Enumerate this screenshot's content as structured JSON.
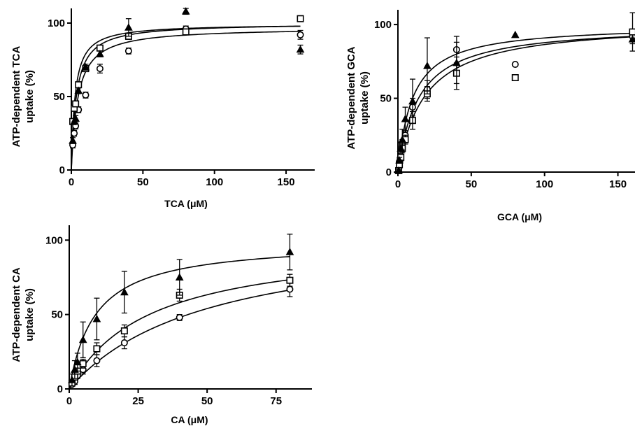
{
  "chart_data": [
    {
      "type": "scatter",
      "title": "",
      "xlabel": "TCA (μM)",
      "ylabel": [
        "ATP-dependent TCA",
        "uptake (%)"
      ],
      "xlim": [
        0,
        170
      ],
      "ylim": [
        0,
        110
      ],
      "xticks": [
        0,
        50,
        100,
        150
      ],
      "yticks": [
        0,
        50,
        100
      ],
      "series": [
        {
          "marker": "circle",
          "fit": {
            "vmax": 97,
            "km": 4.5
          },
          "points": [
            [
              1,
              17,
              2
            ],
            [
              2,
              25,
              2
            ],
            [
              3,
              30,
              2
            ],
            [
              5,
              41,
              2
            ],
            [
              10,
              51,
              2
            ],
            [
              20,
              69,
              3
            ],
            [
              40,
              81,
              2
            ],
            [
              80,
              96,
              2
            ],
            [
              160,
              92,
              3
            ]
          ]
        },
        {
          "marker": "square",
          "fit": {
            "vmax": 99.5,
            "km": 2.6
          },
          "points": [
            [
              1,
              33,
              2
            ],
            [
              2,
              42,
              2
            ],
            [
              3,
              45,
              2
            ],
            [
              5,
              58,
              2
            ],
            [
              10,
              69,
              2
            ],
            [
              20,
              83,
              2
            ],
            [
              40,
              91,
              2
            ],
            [
              80,
              94,
              2
            ],
            [
              160,
              103,
              2
            ]
          ]
        },
        {
          "marker": "triangle",
          "fit": {
            "vmax": 100,
            "km": 3.5
          },
          "points": [
            [
              1,
              20,
              2
            ],
            [
              2,
              33,
              2
            ],
            [
              3,
              35,
              2
            ],
            [
              5,
              54,
              2
            ],
            [
              10,
              70,
              2
            ],
            [
              20,
              79,
              2
            ],
            [
              40,
              97,
              6
            ],
            [
              80,
              108,
              2
            ],
            [
              160,
              82,
              3
            ]
          ]
        }
      ]
    },
    {
      "type": "scatter",
      "title": "",
      "xlabel": "GCA (μM)",
      "ylabel": [
        "ATP-dependent GCA",
        "uptake (%)"
      ],
      "xlim": [
        0,
        165
      ],
      "ylim": [
        0,
        110
      ],
      "xticks": [
        0,
        50,
        100,
        150
      ],
      "yticks": [
        0,
        50,
        100
      ],
      "series": [
        {
          "marker": "circle",
          "fit": {
            "vmax": 100,
            "km": 14
          },
          "points": [
            [
              0.5,
              2,
              1
            ],
            [
              1,
              7,
              2
            ],
            [
              2,
              14,
              3
            ],
            [
              3,
              19,
              3
            ],
            [
              5,
              25,
              3
            ],
            [
              10,
              44,
              6
            ],
            [
              20,
              56,
              6
            ],
            [
              40,
              83,
              9
            ],
            [
              80,
              73,
              0
            ],
            [
              160,
              92,
              3
            ]
          ]
        },
        {
          "marker": "square",
          "fit": {
            "vmax": 102,
            "km": 18
          },
          "points": [
            [
              0.5,
              1,
              1
            ],
            [
              1,
              5,
              2
            ],
            [
              2,
              10,
              3
            ],
            [
              3,
              16,
              3
            ],
            [
              5,
              22,
              3
            ],
            [
              10,
              35,
              6
            ],
            [
              20,
              53,
              5
            ],
            [
              40,
              67,
              11
            ],
            [
              80,
              64,
              0
            ],
            [
              160,
              95,
              13
            ]
          ]
        },
        {
          "marker": "triangle",
          "fit": {
            "vmax": 100,
            "km": 10
          },
          "points": [
            [
              0.5,
              1,
              1
            ],
            [
              1,
              8,
              2
            ],
            [
              2,
              16,
              4
            ],
            [
              3,
              22,
              7
            ],
            [
              5,
              36,
              8
            ],
            [
              10,
              48,
              15
            ],
            [
              20,
              72,
              19
            ],
            [
              40,
              74,
              14
            ],
            [
              80,
              93,
              0
            ],
            [
              160,
              90,
              3
            ]
          ]
        }
      ]
    },
    {
      "type": "scatter",
      "title": "",
      "xlabel": "CA (μM)",
      "ylabel": [
        "ATP-dependent CA",
        "uptake (%)"
      ],
      "xlim": [
        0,
        88
      ],
      "ylim": [
        0,
        110
      ],
      "xticks": [
        0,
        25,
        50,
        75
      ],
      "yticks": [
        0,
        50,
        100
      ],
      "series": [
        {
          "marker": "circle",
          "fit": {
            "vmax": 108,
            "km": 50
          },
          "points": [
            [
              1,
              3,
              1
            ],
            [
              2,
              5,
              2
            ],
            [
              3,
              9,
              2
            ],
            [
              5,
              13,
              3
            ],
            [
              10,
              19,
              4
            ],
            [
              20,
              31,
              4
            ],
            [
              40,
              48,
              2
            ],
            [
              80,
              67,
              5
            ]
          ]
        },
        {
          "marker": "square",
          "fit": {
            "vmax": 100,
            "km": 29
          },
          "points": [
            [
              1,
              4,
              1
            ],
            [
              2,
              8,
              2
            ],
            [
              3,
              12,
              2
            ],
            [
              5,
              17,
              3
            ],
            [
              10,
              27,
              4
            ],
            [
              20,
              39,
              4
            ],
            [
              40,
              63,
              4
            ],
            [
              80,
              73,
              4
            ]
          ]
        },
        {
          "marker": "triangle",
          "fit": {
            "vmax": 99.5,
            "km": 9.5
          },
          "points": [
            [
              1,
              6,
              4
            ],
            [
              2,
              13,
              6
            ],
            [
              3,
              18,
              6
            ],
            [
              5,
              33,
              12
            ],
            [
              10,
              47,
              14
            ],
            [
              20,
              65,
              14
            ],
            [
              40,
              75,
              12
            ],
            [
              80,
              92,
              12
            ]
          ]
        }
      ]
    }
  ]
}
